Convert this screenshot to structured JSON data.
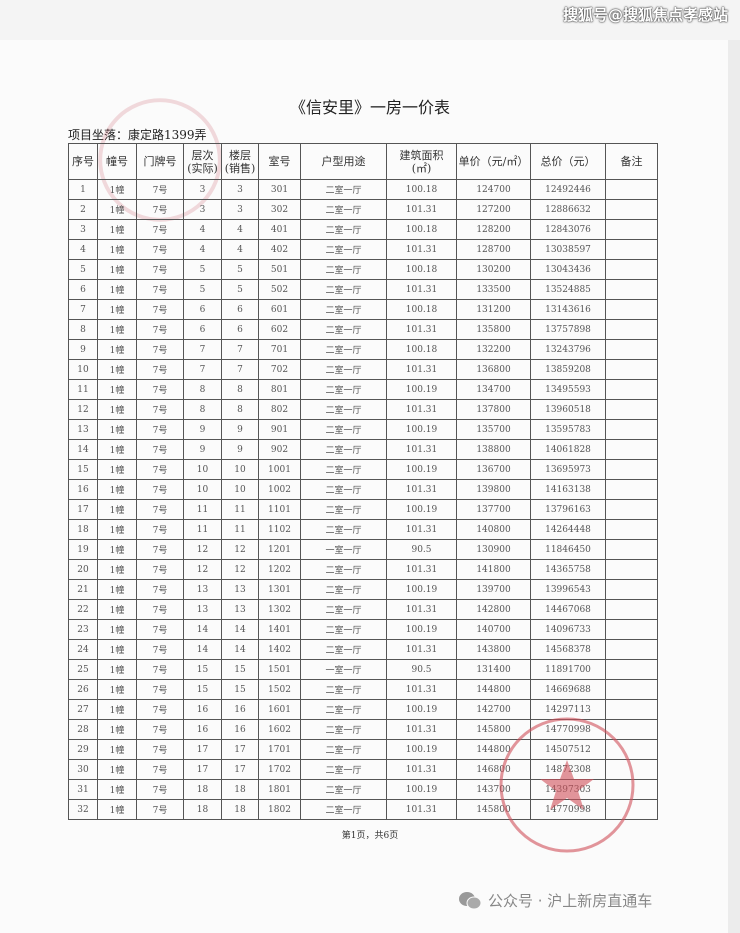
{
  "watermark_top": "搜狐号@搜狐焦点孝感站",
  "title": "《信安里》一房一价表",
  "location": "项目坐落：康定路1399弄",
  "headers": [
    "序号",
    "幢号",
    "门牌号",
    "层次\n(实际)",
    "楼层\n(销售)",
    "室号",
    "户型用途",
    "建筑面积\n(㎡)",
    "单价（元/㎡）",
    "总价（元）",
    "备注"
  ],
  "rows": [
    [
      "1",
      "1幢",
      "7号",
      "3",
      "3",
      "301",
      "二室一厅",
      "100.18",
      "124700",
      "12492446",
      ""
    ],
    [
      "2",
      "1幢",
      "7号",
      "3",
      "3",
      "302",
      "二室一厅",
      "101.31",
      "127200",
      "12886632",
      ""
    ],
    [
      "3",
      "1幢",
      "7号",
      "4",
      "4",
      "401",
      "二室一厅",
      "100.18",
      "128200",
      "12843076",
      ""
    ],
    [
      "4",
      "1幢",
      "7号",
      "4",
      "4",
      "402",
      "二室一厅",
      "101.31",
      "128700",
      "13038597",
      ""
    ],
    [
      "5",
      "1幢",
      "7号",
      "5",
      "5",
      "501",
      "二室一厅",
      "100.18",
      "130200",
      "13043436",
      ""
    ],
    [
      "6",
      "1幢",
      "7号",
      "5",
      "5",
      "502",
      "二室一厅",
      "101.31",
      "133500",
      "13524885",
      ""
    ],
    [
      "7",
      "1幢",
      "7号",
      "6",
      "6",
      "601",
      "二室一厅",
      "100.18",
      "131200",
      "13143616",
      ""
    ],
    [
      "8",
      "1幢",
      "7号",
      "6",
      "6",
      "602",
      "二室一厅",
      "101.31",
      "135800",
      "13757898",
      ""
    ],
    [
      "9",
      "1幢",
      "7号",
      "7",
      "7",
      "701",
      "二室一厅",
      "100.18",
      "132200",
      "13243796",
      ""
    ],
    [
      "10",
      "1幢",
      "7号",
      "7",
      "7",
      "702",
      "二室一厅",
      "101.31",
      "136800",
      "13859208",
      ""
    ],
    [
      "11",
      "1幢",
      "7号",
      "8",
      "8",
      "801",
      "二室一厅",
      "100.19",
      "134700",
      "13495593",
      ""
    ],
    [
      "12",
      "1幢",
      "7号",
      "8",
      "8",
      "802",
      "二室一厅",
      "101.31",
      "137800",
      "13960518",
      ""
    ],
    [
      "13",
      "1幢",
      "7号",
      "9",
      "9",
      "901",
      "二室一厅",
      "100.19",
      "135700",
      "13595783",
      ""
    ],
    [
      "14",
      "1幢",
      "7号",
      "9",
      "9",
      "902",
      "二室一厅",
      "101.31",
      "138800",
      "14061828",
      ""
    ],
    [
      "15",
      "1幢",
      "7号",
      "10",
      "10",
      "1001",
      "二室一厅",
      "100.19",
      "136700",
      "13695973",
      ""
    ],
    [
      "16",
      "1幢",
      "7号",
      "10",
      "10",
      "1002",
      "二室一厅",
      "101.31",
      "139800",
      "14163138",
      ""
    ],
    [
      "17",
      "1幢",
      "7号",
      "11",
      "11",
      "1101",
      "二室一厅",
      "100.19",
      "137700",
      "13796163",
      ""
    ],
    [
      "18",
      "1幢",
      "7号",
      "11",
      "11",
      "1102",
      "二室一厅",
      "101.31",
      "140800",
      "14264448",
      ""
    ],
    [
      "19",
      "1幢",
      "7号",
      "12",
      "12",
      "1201",
      "一室一厅",
      "90.5",
      "130900",
      "11846450",
      ""
    ],
    [
      "20",
      "1幢",
      "7号",
      "12",
      "12",
      "1202",
      "二室一厅",
      "101.31",
      "141800",
      "14365758",
      ""
    ],
    [
      "21",
      "1幢",
      "7号",
      "13",
      "13",
      "1301",
      "二室一厅",
      "100.19",
      "139700",
      "13996543",
      ""
    ],
    [
      "22",
      "1幢",
      "7号",
      "13",
      "13",
      "1302",
      "二室一厅",
      "101.31",
      "142800",
      "14467068",
      ""
    ],
    [
      "23",
      "1幢",
      "7号",
      "14",
      "14",
      "1401",
      "二室一厅",
      "100.19",
      "140700",
      "14096733",
      ""
    ],
    [
      "24",
      "1幢",
      "7号",
      "14",
      "14",
      "1402",
      "二室一厅",
      "101.31",
      "143800",
      "14568378",
      ""
    ],
    [
      "25",
      "1幢",
      "7号",
      "15",
      "15",
      "1501",
      "一室一厅",
      "90.5",
      "131400",
      "11891700",
      ""
    ],
    [
      "26",
      "1幢",
      "7号",
      "15",
      "15",
      "1502",
      "二室一厅",
      "101.31",
      "144800",
      "14669688",
      ""
    ],
    [
      "27",
      "1幢",
      "7号",
      "16",
      "16",
      "1601",
      "二室一厅",
      "100.19",
      "142700",
      "14297113",
      ""
    ],
    [
      "28",
      "1幢",
      "7号",
      "16",
      "16",
      "1602",
      "二室一厅",
      "101.31",
      "145800",
      "14770998",
      ""
    ],
    [
      "29",
      "1幢",
      "7号",
      "17",
      "17",
      "1701",
      "二室一厅",
      "100.19",
      "144800",
      "14507512",
      ""
    ],
    [
      "30",
      "1幢",
      "7号",
      "17",
      "17",
      "1702",
      "二室一厅",
      "101.31",
      "146800",
      "14872308",
      ""
    ],
    [
      "31",
      "1幢",
      "7号",
      "18",
      "18",
      "1801",
      "二室一厅",
      "100.19",
      "143700",
      "14397303",
      ""
    ],
    [
      "32",
      "1幢",
      "7号",
      "18",
      "18",
      "1802",
      "二室一厅",
      "101.31",
      "145800",
      "14770998",
      ""
    ]
  ],
  "footer_page": "第1页，共6页",
  "wechat_label": "公众号 · 沪上新房直通车",
  "colors": {
    "stamp": "#d0505a",
    "text": "#333333"
  }
}
